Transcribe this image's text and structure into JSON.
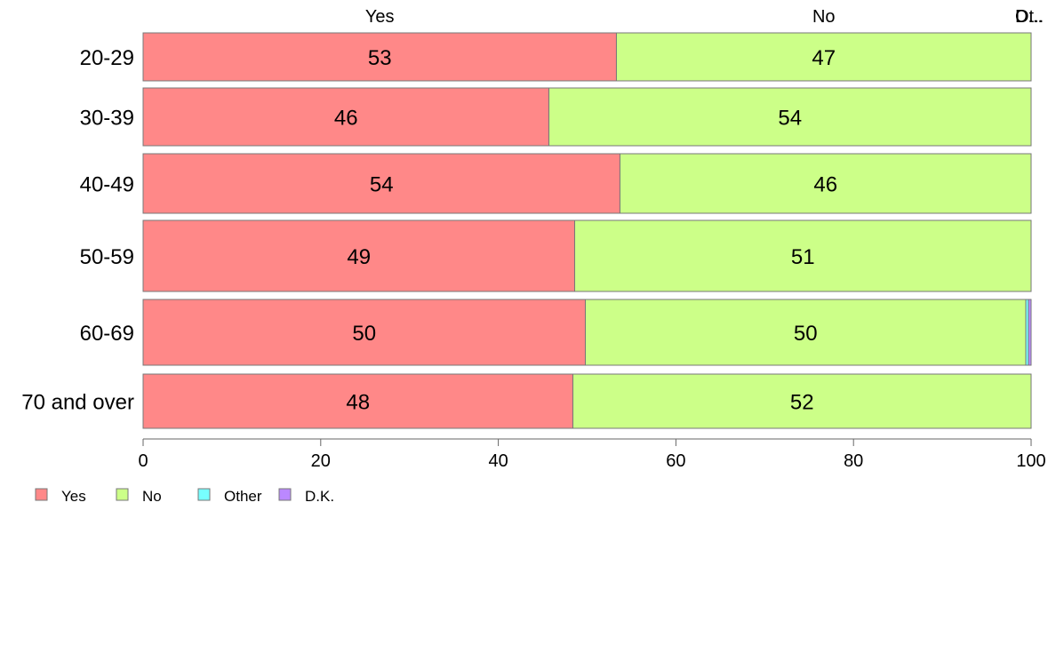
{
  "chart_data": {
    "type": "bar",
    "orientation": "horizontal",
    "stacked": true,
    "categories": [
      "20-29",
      "30-39",
      "40-49",
      "50-59",
      "60-69",
      "70 and over"
    ],
    "series": [
      {
        "name": "Yes",
        "color": "#ff8888",
        "values": [
          53.3,
          45.7,
          53.7,
          48.6,
          49.8,
          48.4
        ]
      },
      {
        "name": "No",
        "color": "#ccff88",
        "values": [
          46.7,
          54.3,
          46.3,
          51.4,
          49.6,
          51.6
        ]
      },
      {
        "name": "Other",
        "color": "#77ffff",
        "values": [
          0,
          0,
          0,
          0,
          0.3,
          0
        ]
      },
      {
        "name": "D.K.",
        "color": "#bb88ff",
        "values": [
          0,
          0,
          0,
          0,
          0.3,
          0
        ]
      }
    ],
    "data_labels": {
      "Yes": [
        "53",
        "46",
        "54",
        "49",
        "50",
        "48"
      ],
      "No": [
        "47",
        "54",
        "46",
        "51",
        "50",
        "52"
      ]
    },
    "top_labels": [
      "Yes",
      "No",
      "Ot..",
      "D..."
    ],
    "xlim": [
      0,
      100
    ],
    "xticks": [
      0,
      20,
      40,
      60,
      80,
      100
    ],
    "legend_position": "bottom-left",
    "grid": false
  }
}
